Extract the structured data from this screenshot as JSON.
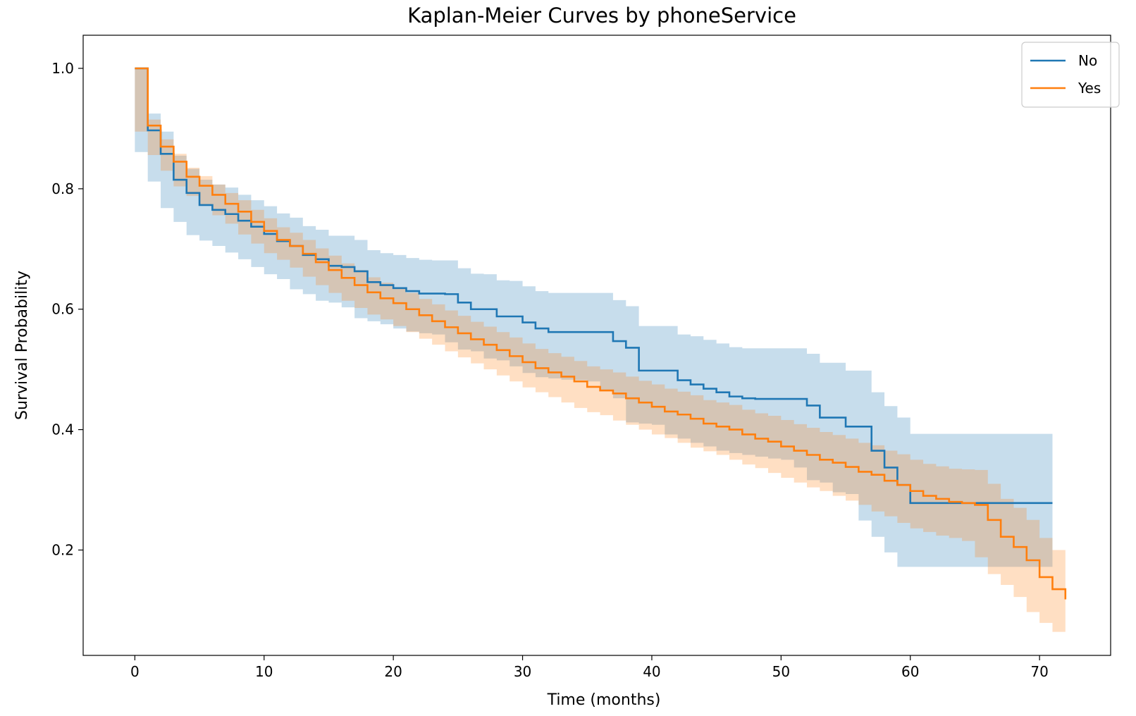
{
  "chart_data": {
    "type": "line",
    "title": "Kaplan-Meier Curves by phoneService",
    "xlabel": "Time (months)",
    "ylabel": "Survival Probability",
    "xlim": [
      -4,
      75.5
    ],
    "ylim": [
      0.025,
      1.055
    ],
    "x_ticks": [
      0,
      10,
      20,
      30,
      40,
      50,
      60,
      70
    ],
    "y_ticks": [
      0.2,
      0.4,
      0.6,
      0.8,
      1.0
    ],
    "y_tick_labels": [
      "0.2",
      "0.4",
      "0.6",
      "0.8",
      "1.0"
    ],
    "grid": false,
    "legend_position": "top-right",
    "series": [
      {
        "name": "No",
        "color": "#1f77b4",
        "times": [
          0,
          1,
          2,
          3,
          4,
          5,
          6,
          7,
          8,
          9,
          10,
          11,
          12,
          13,
          14,
          15,
          16,
          17,
          18,
          19,
          20,
          21,
          22,
          23,
          24,
          25,
          26,
          27,
          28,
          29,
          30,
          31,
          32,
          33,
          34,
          35,
          36,
          37,
          38,
          39,
          40,
          41,
          42,
          43,
          44,
          45,
          46,
          47,
          48,
          49,
          50,
          51,
          52,
          53,
          54,
          55,
          56,
          57,
          58,
          59,
          60,
          61,
          62,
          63,
          64,
          65,
          66,
          67,
          68,
          69,
          70,
          71
        ],
        "survival": [
          1.0,
          0.897,
          0.858,
          0.815,
          0.793,
          0.773,
          0.765,
          0.758,
          0.747,
          0.737,
          0.725,
          0.713,
          0.705,
          0.69,
          0.683,
          0.672,
          0.67,
          0.663,
          0.645,
          0.64,
          0.635,
          0.63,
          0.626,
          0.626,
          0.625,
          0.611,
          0.6,
          0.6,
          0.588,
          0.588,
          0.578,
          0.568,
          0.562,
          0.562,
          0.562,
          0.562,
          0.562,
          0.547,
          0.536,
          0.498,
          0.498,
          0.498,
          0.482,
          0.475,
          0.468,
          0.462,
          0.455,
          0.452,
          0.451,
          0.451,
          0.451,
          0.451,
          0.44,
          0.42,
          0.42,
          0.405,
          0.405,
          0.365,
          0.337,
          0.308,
          0.278,
          0.278,
          0.278,
          0.278,
          0.278,
          0.278,
          0.278,
          0.278,
          0.278,
          0.278,
          0.278,
          0.278
        ],
        "ci_lower": [
          1.0,
          0.861,
          0.812,
          0.768,
          0.745,
          0.723,
          0.714,
          0.705,
          0.694,
          0.683,
          0.67,
          0.658,
          0.65,
          0.633,
          0.625,
          0.614,
          0.611,
          0.603,
          0.585,
          0.58,
          0.575,
          0.568,
          0.563,
          0.56,
          0.558,
          0.545,
          0.533,
          0.53,
          0.518,
          0.515,
          0.505,
          0.494,
          0.487,
          0.485,
          0.483,
          0.482,
          0.48,
          0.464,
          0.452,
          0.412,
          0.41,
          0.408,
          0.392,
          0.385,
          0.378,
          0.372,
          0.365,
          0.361,
          0.358,
          0.355,
          0.352,
          0.35,
          0.337,
          0.316,
          0.312,
          0.296,
          0.293,
          0.249,
          0.222,
          0.196,
          0.172,
          0.172,
          0.172,
          0.172,
          0.172,
          0.172,
          0.172,
          0.172,
          0.172,
          0.172,
          0.172,
          0.172
        ],
        "ci_upper": [
          1.0,
          0.925,
          0.895,
          0.855,
          0.833,
          0.815,
          0.807,
          0.802,
          0.79,
          0.781,
          0.771,
          0.759,
          0.752,
          0.738,
          0.732,
          0.722,
          0.722,
          0.715,
          0.698,
          0.693,
          0.69,
          0.685,
          0.682,
          0.681,
          0.681,
          0.668,
          0.659,
          0.658,
          0.648,
          0.647,
          0.638,
          0.63,
          0.627,
          0.627,
          0.627,
          0.627,
          0.627,
          0.615,
          0.605,
          0.572,
          0.572,
          0.572,
          0.558,
          0.555,
          0.549,
          0.543,
          0.537,
          0.535,
          0.535,
          0.535,
          0.535,
          0.535,
          0.526,
          0.511,
          0.511,
          0.498,
          0.498,
          0.462,
          0.439,
          0.42,
          0.393,
          0.393,
          0.393,
          0.393,
          0.393,
          0.393,
          0.393,
          0.393,
          0.393,
          0.393,
          0.393,
          0.393
        ]
      },
      {
        "name": "Yes",
        "color": "#ff7f0e",
        "times": [
          0,
          1,
          2,
          3,
          4,
          5,
          6,
          7,
          8,
          9,
          10,
          11,
          12,
          13,
          14,
          15,
          16,
          17,
          18,
          19,
          20,
          21,
          22,
          23,
          24,
          25,
          26,
          27,
          28,
          29,
          30,
          31,
          32,
          33,
          34,
          35,
          36,
          37,
          38,
          39,
          40,
          41,
          42,
          43,
          44,
          45,
          46,
          47,
          48,
          49,
          50,
          51,
          52,
          53,
          54,
          55,
          56,
          57,
          58,
          59,
          60,
          61,
          62,
          63,
          64,
          65,
          66,
          67,
          68,
          69,
          70,
          71,
          72
        ],
        "survival": [
          1.0,
          0.905,
          0.87,
          0.845,
          0.82,
          0.805,
          0.79,
          0.775,
          0.762,
          0.745,
          0.73,
          0.715,
          0.705,
          0.692,
          0.678,
          0.665,
          0.652,
          0.64,
          0.628,
          0.618,
          0.61,
          0.6,
          0.59,
          0.58,
          0.57,
          0.56,
          0.55,
          0.541,
          0.532,
          0.522,
          0.512,
          0.502,
          0.495,
          0.488,
          0.48,
          0.471,
          0.465,
          0.46,
          0.452,
          0.445,
          0.438,
          0.43,
          0.425,
          0.418,
          0.41,
          0.405,
          0.4,
          0.392,
          0.385,
          0.38,
          0.372,
          0.365,
          0.358,
          0.35,
          0.345,
          0.338,
          0.33,
          0.325,
          0.315,
          0.308,
          0.298,
          0.29,
          0.285,
          0.28,
          0.278,
          0.275,
          0.25,
          0.222,
          0.205,
          0.183,
          0.155,
          0.135,
          0.118
        ],
        "ci_lower": [
          1.0,
          0.895,
          0.856,
          0.83,
          0.804,
          0.788,
          0.772,
          0.756,
          0.742,
          0.724,
          0.709,
          0.693,
          0.682,
          0.669,
          0.654,
          0.64,
          0.627,
          0.614,
          0.602,
          0.591,
          0.583,
          0.572,
          0.562,
          0.551,
          0.541,
          0.53,
          0.52,
          0.51,
          0.5,
          0.49,
          0.48,
          0.47,
          0.462,
          0.454,
          0.445,
          0.436,
          0.429,
          0.424,
          0.415,
          0.408,
          0.4,
          0.392,
          0.386,
          0.378,
          0.37,
          0.364,
          0.358,
          0.35,
          0.342,
          0.336,
          0.328,
          0.32,
          0.312,
          0.304,
          0.298,
          0.29,
          0.282,
          0.275,
          0.264,
          0.256,
          0.245,
          0.236,
          0.23,
          0.224,
          0.22,
          0.215,
          0.188,
          0.16,
          0.142,
          0.122,
          0.097,
          0.079,
          0.064
        ],
        "ci_upper": [
          1.0,
          0.915,
          0.882,
          0.858,
          0.835,
          0.821,
          0.807,
          0.793,
          0.781,
          0.765,
          0.751,
          0.736,
          0.727,
          0.715,
          0.701,
          0.689,
          0.676,
          0.665,
          0.653,
          0.644,
          0.636,
          0.627,
          0.617,
          0.608,
          0.598,
          0.589,
          0.579,
          0.571,
          0.562,
          0.553,
          0.543,
          0.534,
          0.527,
          0.521,
          0.514,
          0.505,
          0.5,
          0.495,
          0.488,
          0.481,
          0.475,
          0.468,
          0.463,
          0.457,
          0.449,
          0.445,
          0.441,
          0.433,
          0.427,
          0.423,
          0.416,
          0.409,
          0.403,
          0.396,
          0.391,
          0.385,
          0.378,
          0.374,
          0.365,
          0.359,
          0.35,
          0.343,
          0.339,
          0.335,
          0.334,
          0.333,
          0.31,
          0.285,
          0.27,
          0.25,
          0.22,
          0.2,
          0.188
        ]
      }
    ]
  }
}
